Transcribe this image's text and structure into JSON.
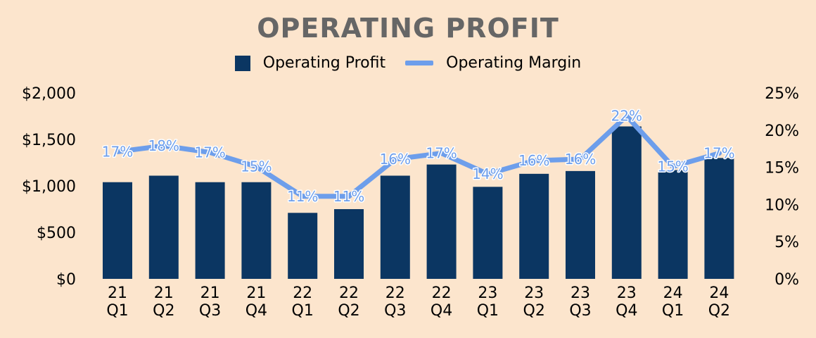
{
  "chart_data": {
    "type": "bar",
    "title": "OPERATING PROFIT",
    "categories": [
      [
        "21",
        "Q1"
      ],
      [
        "21",
        "Q2"
      ],
      [
        "21",
        "Q3"
      ],
      [
        "21",
        "Q4"
      ],
      [
        "22",
        "Q1"
      ],
      [
        "22",
        "Q2"
      ],
      [
        "22",
        "Q3"
      ],
      [
        "22",
        "Q4"
      ],
      [
        "23",
        "Q1"
      ],
      [
        "23",
        "Q2"
      ],
      [
        "23",
        "Q3"
      ],
      [
        "23",
        "Q4"
      ],
      [
        "24",
        "Q1"
      ],
      [
        "24",
        "Q2"
      ]
    ],
    "series": [
      {
        "name": "Operating Profit",
        "type": "bar",
        "axis": "left",
        "color": "#0b3662",
        "values": [
          1040,
          1110,
          1040,
          1040,
          710,
          750,
          1110,
          1230,
          990,
          1130,
          1160,
          1640,
          1170,
          1300
        ]
      },
      {
        "name": "Operating Margin",
        "type": "line",
        "axis": "right",
        "color": "#6d9eeb",
        "values": [
          17,
          18,
          17,
          15,
          11,
          11,
          16,
          17,
          14,
          16,
          16,
          22,
          15,
          17
        ],
        "labels": [
          "17%",
          "18%",
          "17%",
          "15%",
          "11%",
          "11%",
          "16%",
          "17%",
          "14%",
          "16%",
          "16%",
          "22%",
          "15%",
          "17%"
        ],
        "plot_values": [
          17.1,
          17.9,
          17.0,
          15.1,
          11.1,
          11.1,
          16.1,
          16.9,
          14.1,
          15.9,
          16.1,
          21.9,
          15.1,
          16.9
        ]
      }
    ],
    "left_axis": {
      "ylim": [
        0,
        2000
      ],
      "ticks": [
        0,
        500,
        1000,
        1500,
        2000
      ],
      "tick_labels": [
        "$0",
        "$500",
        "$1,000",
        "$1,500",
        "$2,000"
      ]
    },
    "right_axis": {
      "ylim": [
        0,
        25
      ],
      "ticks": [
        0,
        5,
        10,
        15,
        20,
        25
      ],
      "tick_labels": [
        "0%",
        "5%",
        "10%",
        "15%",
        "20%",
        "25%"
      ]
    },
    "legend_position": "top-center",
    "grid": false
  }
}
